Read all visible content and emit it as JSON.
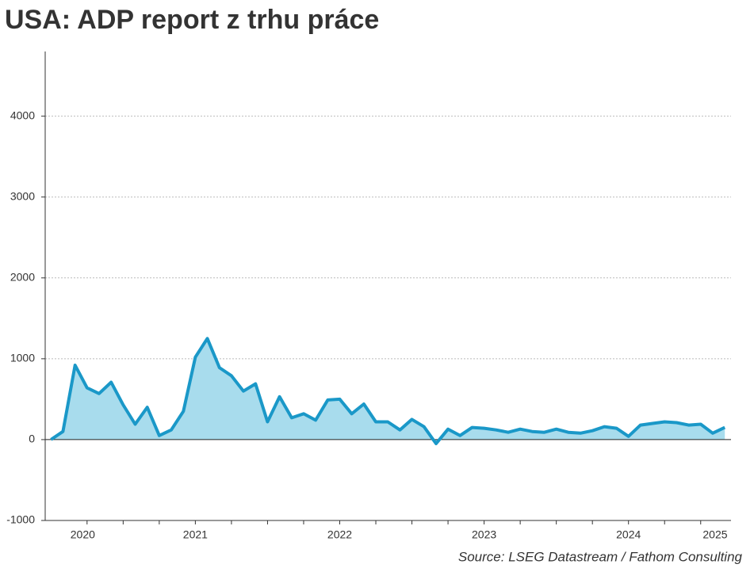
{
  "chart_data": {
    "type": "area",
    "title": "USA: ADP report z trhu práce",
    "source": "Source: LSEG Datastream / Fathom Consulting",
    "x": [
      2020.5,
      2020.583,
      2020.667,
      2020.75,
      2020.833,
      2020.917,
      2021,
      2021.083,
      2021.167,
      2021.25,
      2021.333,
      2021.417,
      2021.5,
      2021.583,
      2021.667,
      2021.75,
      2021.833,
      2021.917,
      2022,
      2022.083,
      2022.167,
      2022.25,
      2022.333,
      2022.417,
      2022.5,
      2022.583,
      2022.667,
      2022.75,
      2022.833,
      2022.917,
      2023,
      2023.083,
      2023.167,
      2023.25,
      2023.333,
      2023.417,
      2023.5,
      2023.583,
      2023.667,
      2023.75,
      2023.833,
      2023.917,
      2024,
      2024.083,
      2024.167,
      2024.25,
      2024.333,
      2024.417,
      2024.5,
      2024.583,
      2024.667,
      2024.75,
      2024.833,
      2024.917,
      2025,
      2025.083,
      2025.167
    ],
    "series": [
      {
        "color": "#1a98c8",
        "fill": "#a8dced",
        "values": [
          0,
          100,
          920,
          640,
          570,
          710,
          430,
          190,
          400,
          50,
          120,
          350,
          1020,
          1250,
          890,
          790,
          600,
          690,
          220,
          530,
          270,
          320,
          240,
          490,
          500,
          320,
          440,
          220,
          220,
          120,
          250,
          160,
          -50,
          130,
          50,
          150,
          140,
          120,
          90,
          130,
          100,
          90,
          130,
          90,
          80,
          110,
          160,
          140,
          40,
          180,
          200,
          220,
          210,
          180,
          190,
          80,
          150
        ]
      }
    ],
    "xlim": [
      2020.46,
      2025.21
    ],
    "xticks": [
      {
        "value": 2020.72,
        "label": "2020"
      },
      {
        "value": 2021.5,
        "label": "2021"
      },
      {
        "value": 2022.5,
        "label": "2022"
      },
      {
        "value": 2023.5,
        "label": "2023"
      },
      {
        "value": 2024.5,
        "label": "2024"
      },
      {
        "value": 2025.1,
        "label": "2025"
      }
    ],
    "xminorticks": [
      2020.75,
      2021,
      2021.25,
      2021.5,
      2021.75,
      2022,
      2022.25,
      2022.5,
      2022.75,
      2023,
      2023.25,
      2023.5,
      2023.75,
      2024,
      2024.25,
      2024.5,
      2024.75,
      2025
    ],
    "ylim": [
      -1000,
      4800
    ],
    "yticks": [
      -1000,
      0,
      1000,
      2000,
      3000,
      4000
    ],
    "grid": true
  }
}
